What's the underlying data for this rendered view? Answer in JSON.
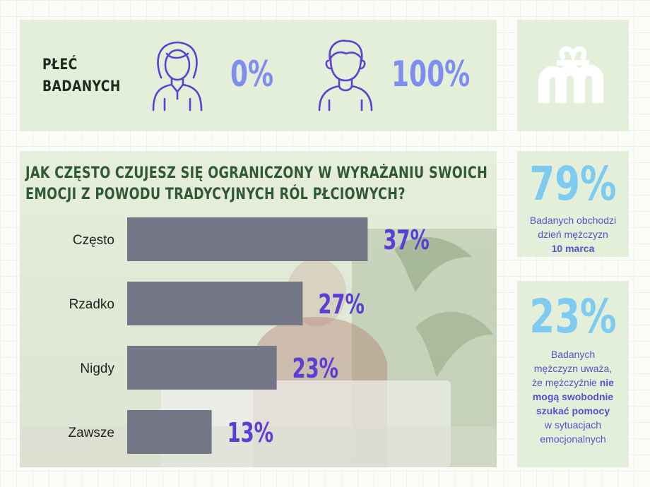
{
  "gender": {
    "label_line1": "PŁEĆ",
    "label_line2": "BADANYCH",
    "female_percent": "0%",
    "male_percent": "100%"
  },
  "chart_data": {
    "type": "bar",
    "orientation": "horizontal",
    "title_line1": "JAK CZĘSTO CZUJESZ SIĘ OGRANICZONY W WYRAŻANIU SWOICH",
    "title_line2": "EMOCJI Z POWODU TRADYCYJNYCH RÓL PŁCIOWYCH?",
    "categories": [
      "Często",
      "Rzadko",
      "Nigdy",
      "Zawsze"
    ],
    "values": [
      37,
      27,
      23,
      13
    ],
    "value_labels": [
      "37%",
      "27%",
      "23%",
      "13%"
    ],
    "xlim": [
      0,
      100
    ],
    "grid": false,
    "bar_color": "#737785",
    "label_color": "#5a3ed6"
  },
  "stat1": {
    "value": "79%",
    "line1": "Badanych obchodzi",
    "line2": "dzień mężczyzn",
    "line3_bold": "10 marca"
  },
  "stat2": {
    "value": "23%",
    "line1": "Badanych",
    "line2": "mężczyzn uważa,",
    "line3_pre": "że mężczyźnie",
    "line3_bold": "nie",
    "line4_bold": "mogą swobodnie",
    "line5_bold": "szukać pomocy",
    "line6": "w sytuacjach",
    "line7": "emocjonalnych"
  },
  "colors": {
    "panel": "#e3efd8",
    "icon_purple": "#5b3fd6",
    "percent_blue": "#7f8cf0",
    "stat_blue": "#7ecbf1",
    "stat_text": "#5a4fcf",
    "title_green": "#2f5a34"
  },
  "icons": [
    "woman-icon",
    "man-icon",
    "brand-logo-icon"
  ]
}
